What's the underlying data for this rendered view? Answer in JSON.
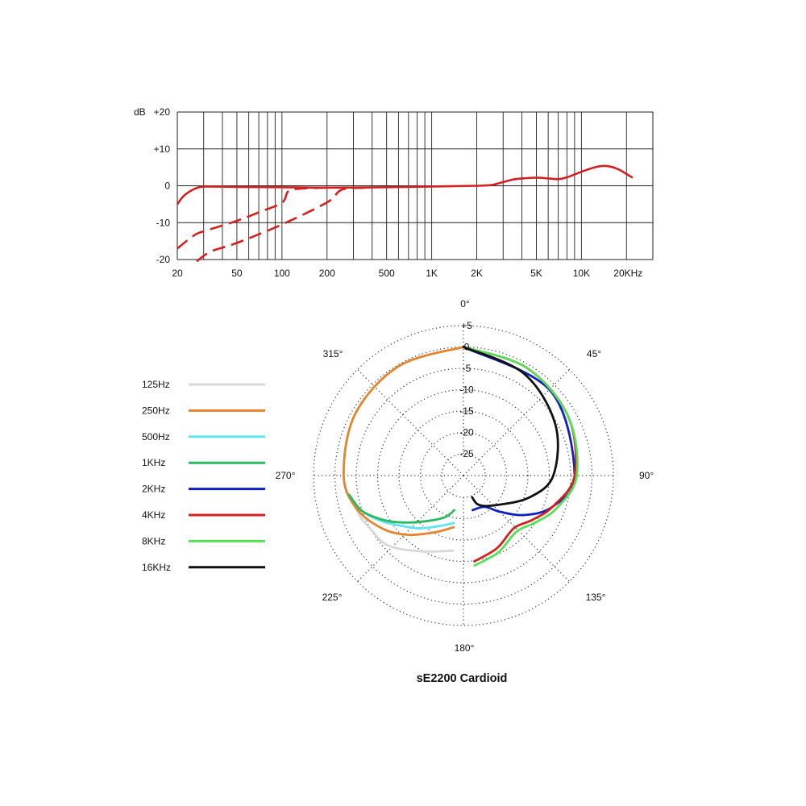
{
  "chart_data": [
    {
      "type": "line",
      "subtype": "frequency-response",
      "x_scale": "log",
      "xlim": [
        20,
        30000
      ],
      "ylim": [
        -20,
        20
      ],
      "grid": true,
      "y_unit_label": "dB",
      "y_ticks": [
        {
          "value": 20,
          "label": "+20"
        },
        {
          "value": 10,
          "label": "+10"
        },
        {
          "value": 0,
          "label": "0"
        },
        {
          "value": -10,
          "label": "-10"
        },
        {
          "value": -20,
          "label": "-20"
        }
      ],
      "x_ticks": [
        {
          "value": 20,
          "label": "20"
        },
        {
          "value": 50,
          "label": "50"
        },
        {
          "value": 100,
          "label": "100"
        },
        {
          "value": 200,
          "label": "200"
        },
        {
          "value": 500,
          "label": "500"
        },
        {
          "value": 1000,
          "label": "1K"
        },
        {
          "value": 2000,
          "label": "2K"
        },
        {
          "value": 5000,
          "label": "5K"
        },
        {
          "value": 10000,
          "label": "10K"
        },
        {
          "value": 20000,
          "label": "20KHz"
        }
      ],
      "series": [
        {
          "style": "solid",
          "color": "#d42020",
          "points": [
            [
              20,
              -5
            ],
            [
              22,
              -2.8
            ],
            [
              25,
              -1.2
            ],
            [
              28,
              -0.4
            ],
            [
              32,
              -0.2
            ],
            [
              50,
              -0.3
            ],
            [
              100,
              -0.4
            ],
            [
              200,
              -0.5
            ],
            [
              500,
              -0.4
            ],
            [
              1000,
              -0.2
            ],
            [
              2000,
              0
            ],
            [
              2500,
              0.2
            ],
            [
              3000,
              1
            ],
            [
              3500,
              1.7
            ],
            [
              4000,
              2
            ],
            [
              5000,
              2.2
            ],
            [
              6000,
              2
            ],
            [
              7000,
              1.8
            ],
            [
              8000,
              2.3
            ],
            [
              10000,
              3.8
            ],
            [
              12000,
              4.9
            ],
            [
              14000,
              5.4
            ],
            [
              16000,
              5.1
            ],
            [
              18000,
              4.3
            ],
            [
              20000,
              3.2
            ],
            [
              22000,
              2.2
            ]
          ]
        },
        {
          "style": "dashed",
          "color": "#d42020",
          "points": [
            [
              20,
              -17
            ],
            [
              23,
              -15
            ],
            [
              27,
              -13
            ],
            [
              32,
              -12
            ],
            [
              50,
              -9.5
            ],
            [
              70,
              -7.2
            ],
            [
              100,
              -4.6
            ],
            [
              110,
              -1.5
            ],
            [
              130,
              -0.8
            ],
            [
              200,
              -0.5
            ]
          ]
        },
        {
          "style": "dashed",
          "color": "#d42020",
          "points": [
            [
              27,
              -20.5
            ],
            [
              30,
              -19
            ],
            [
              35,
              -17.5
            ],
            [
              50,
              -15.5
            ],
            [
              100,
              -10.5
            ],
            [
              200,
              -4.5
            ],
            [
              240,
              -1.5
            ],
            [
              280,
              -0.7
            ],
            [
              400,
              -0.5
            ]
          ]
        }
      ]
    },
    {
      "type": "polar",
      "title": "sE2200  Cardioid",
      "r_ticks": [
        "+5",
        "0",
        "-5",
        "-10",
        "-15",
        "-20",
        "-25"
      ],
      "angle_labels": [
        "0°",
        "45°",
        "90°",
        "135°",
        "180°",
        "225°",
        "270°",
        "315°"
      ],
      "series": [
        {
          "name": "125Hz",
          "color": "#d8d8d8",
          "side": "left",
          "points": [
            [
              0,
              0
            ],
            [
              30,
              -0.5
            ],
            [
              60,
              -1.5
            ],
            [
              90,
              -3
            ],
            [
              110,
              -5
            ],
            [
              120,
              -6
            ],
            [
              135,
              -7
            ],
            [
              155,
              -10.5
            ],
            [
              178,
              -12.5
            ]
          ]
        },
        {
          "name": "250Hz",
          "color": "#e5852e",
          "side": "left",
          "points": [
            [
              0,
              0
            ],
            [
              30,
              -0.5
            ],
            [
              60,
              -1.5
            ],
            [
              90,
              -3
            ],
            [
              108,
              -5
            ],
            [
              125,
              -8.5
            ],
            [
              140,
              -12
            ],
            [
              160,
              -16
            ],
            [
              178,
              -18
            ]
          ]
        },
        {
          "name": "500Hz",
          "color": "#5ee5f0",
          "side": "left",
          "points": [
            [
              100,
              -4
            ],
            [
              110,
              -6
            ],
            [
              120,
              -9
            ],
            [
              130,
              -12
            ],
            [
              145,
              -15
            ],
            [
              165,
              -18
            ],
            [
              178,
              -19
            ]
          ]
        },
        {
          "name": "1KHz",
          "color": "#2eb860",
          "side": "left",
          "points": [
            [
              100,
              -4
            ],
            [
              110,
              -6
            ],
            [
              120,
              -9.5
            ],
            [
              130,
              -13
            ],
            [
              145,
              -17
            ],
            [
              165,
              -20
            ],
            [
              178,
              -22
            ]
          ]
        },
        {
          "name": "2KHz",
          "color": "#1020c0",
          "side": "right",
          "points": [
            [
              0,
              0
            ],
            [
              45,
              -2
            ],
            [
              90,
              -5
            ],
            [
              110,
              -9
            ],
            [
              125,
              -14
            ],
            [
              140,
              -19
            ],
            [
              155,
              -22
            ],
            [
              178,
              -22
            ]
          ]
        },
        {
          "name": "4KHz",
          "color": "#d42020",
          "side": "right",
          "points": [
            [
              0,
              0
            ],
            [
              30,
              -1
            ],
            [
              60,
              -2.5
            ],
            [
              90,
              -5
            ],
            [
              110,
              -9
            ],
            [
              125,
              -12
            ],
            [
              140,
              -14
            ],
            [
              160,
              -12
            ],
            [
              178,
              -10
            ]
          ]
        },
        {
          "name": "8KHz",
          "color": "#55e055",
          "side": "right",
          "points": [
            [
              0,
              0
            ],
            [
              30,
              -1
            ],
            [
              60,
              -2.5
            ],
            [
              90,
              -4.5
            ],
            [
              110,
              -8
            ],
            [
              125,
              -11
            ],
            [
              140,
              -13
            ],
            [
              160,
              -11
            ],
            [
              178,
              -9
            ]
          ]
        },
        {
          "name": "16KHz",
          "color": "#111111",
          "side": "right",
          "points": [
            [
              0,
              0
            ],
            [
              30,
              -2.5
            ],
            [
              60,
              -6
            ],
            [
              90,
              -10
            ],
            [
              110,
              -15
            ],
            [
              140,
              -21
            ],
            [
              165,
              -23
            ],
            [
              178,
              -25
            ]
          ]
        }
      ]
    }
  ],
  "legend": [
    {
      "label": "125Hz",
      "color": "#d8d8d8"
    },
    {
      "label": "250Hz",
      "color": "#e5852e"
    },
    {
      "label": "500Hz",
      "color": "#5ee5f0"
    },
    {
      "label": "1KHz",
      "color": "#2eb860"
    },
    {
      "label": "2KHz",
      "color": "#1020c0"
    },
    {
      "label": "4KHz",
      "color": "#d42020"
    },
    {
      "label": "8KHz",
      "color": "#55e055"
    },
    {
      "label": "16KHz",
      "color": "#111111"
    }
  ]
}
